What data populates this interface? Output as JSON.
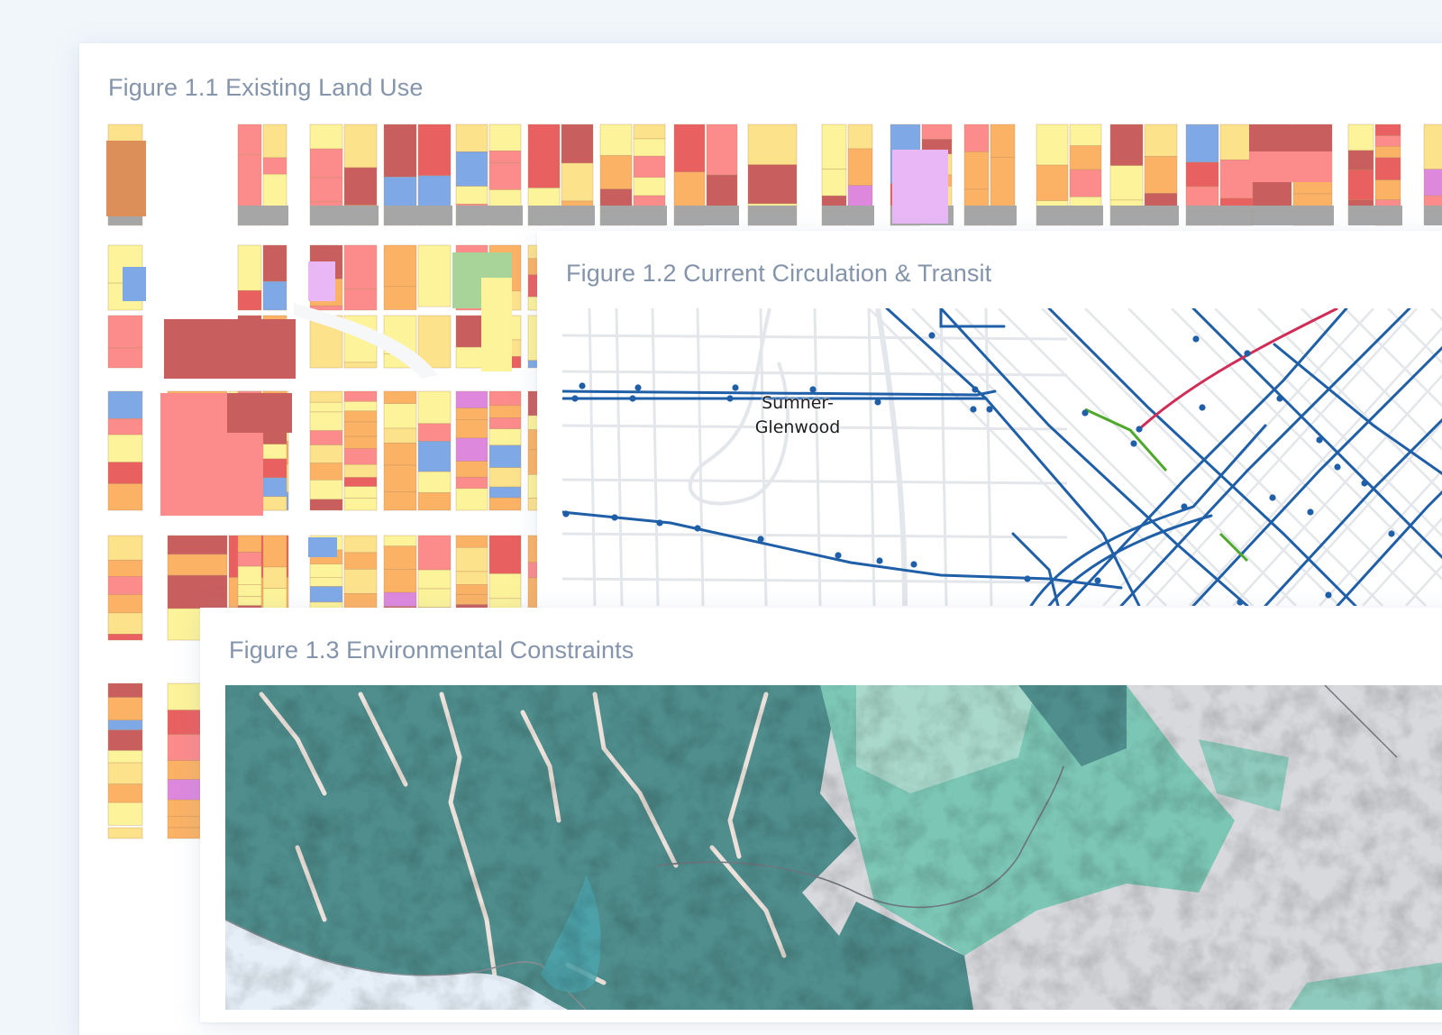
{
  "figures": [
    {
      "id": "land-use",
      "title": "Figure 1.1 Existing Land Use",
      "map_type": "parcel-land-use"
    },
    {
      "id": "circulation",
      "title": "Figure 1.2 Current Circulation & Transit",
      "map_type": "transit-network",
      "labels": [
        {
          "text_line1": "Sumner-",
          "text_line2": "Glenwood"
        }
      ]
    },
    {
      "id": "environment",
      "title": "Figure 1.3 Environmental Constraints",
      "map_type": "terrain-constraints"
    }
  ],
  "colors": {
    "background": "#f1f6fb",
    "title_text": "#8494ab",
    "card_bg": "#ffffff",
    "landuse": {
      "residential_low": "#fdf39a",
      "residential_med": "#fde28c",
      "residential_high": "#fbb265",
      "commercial": "#fc8b8b",
      "commercial_dense": "#c95e5e",
      "mixed_use": "#e96060",
      "institutional": "#e9b7f5",
      "open_space": "#a8d49a",
      "public": "#7fa9e6",
      "industrial": "#dd88dd",
      "parking_row": "#a6a6a6",
      "vacant": "#eeeeee",
      "industrial_old": "#dc8f58",
      "street": "#f6f7f8",
      "parcel_stroke": "#b88a5c"
    },
    "transit": {
      "bus": "#1f5fa8",
      "rail_red": "#d12c55",
      "rail_green": "#4ea82a",
      "street_lines": "#e3e6ea"
    },
    "environment": {
      "constraint_high": "#4f8e8d",
      "constraint_mid": "#7cc6b5",
      "constraint_low": "#a9d9cb",
      "terrain": "#d8d9dc",
      "water": "#e6eff8",
      "reservoir": "#4ba3ab",
      "drainage": "#eee3dc"
    }
  }
}
